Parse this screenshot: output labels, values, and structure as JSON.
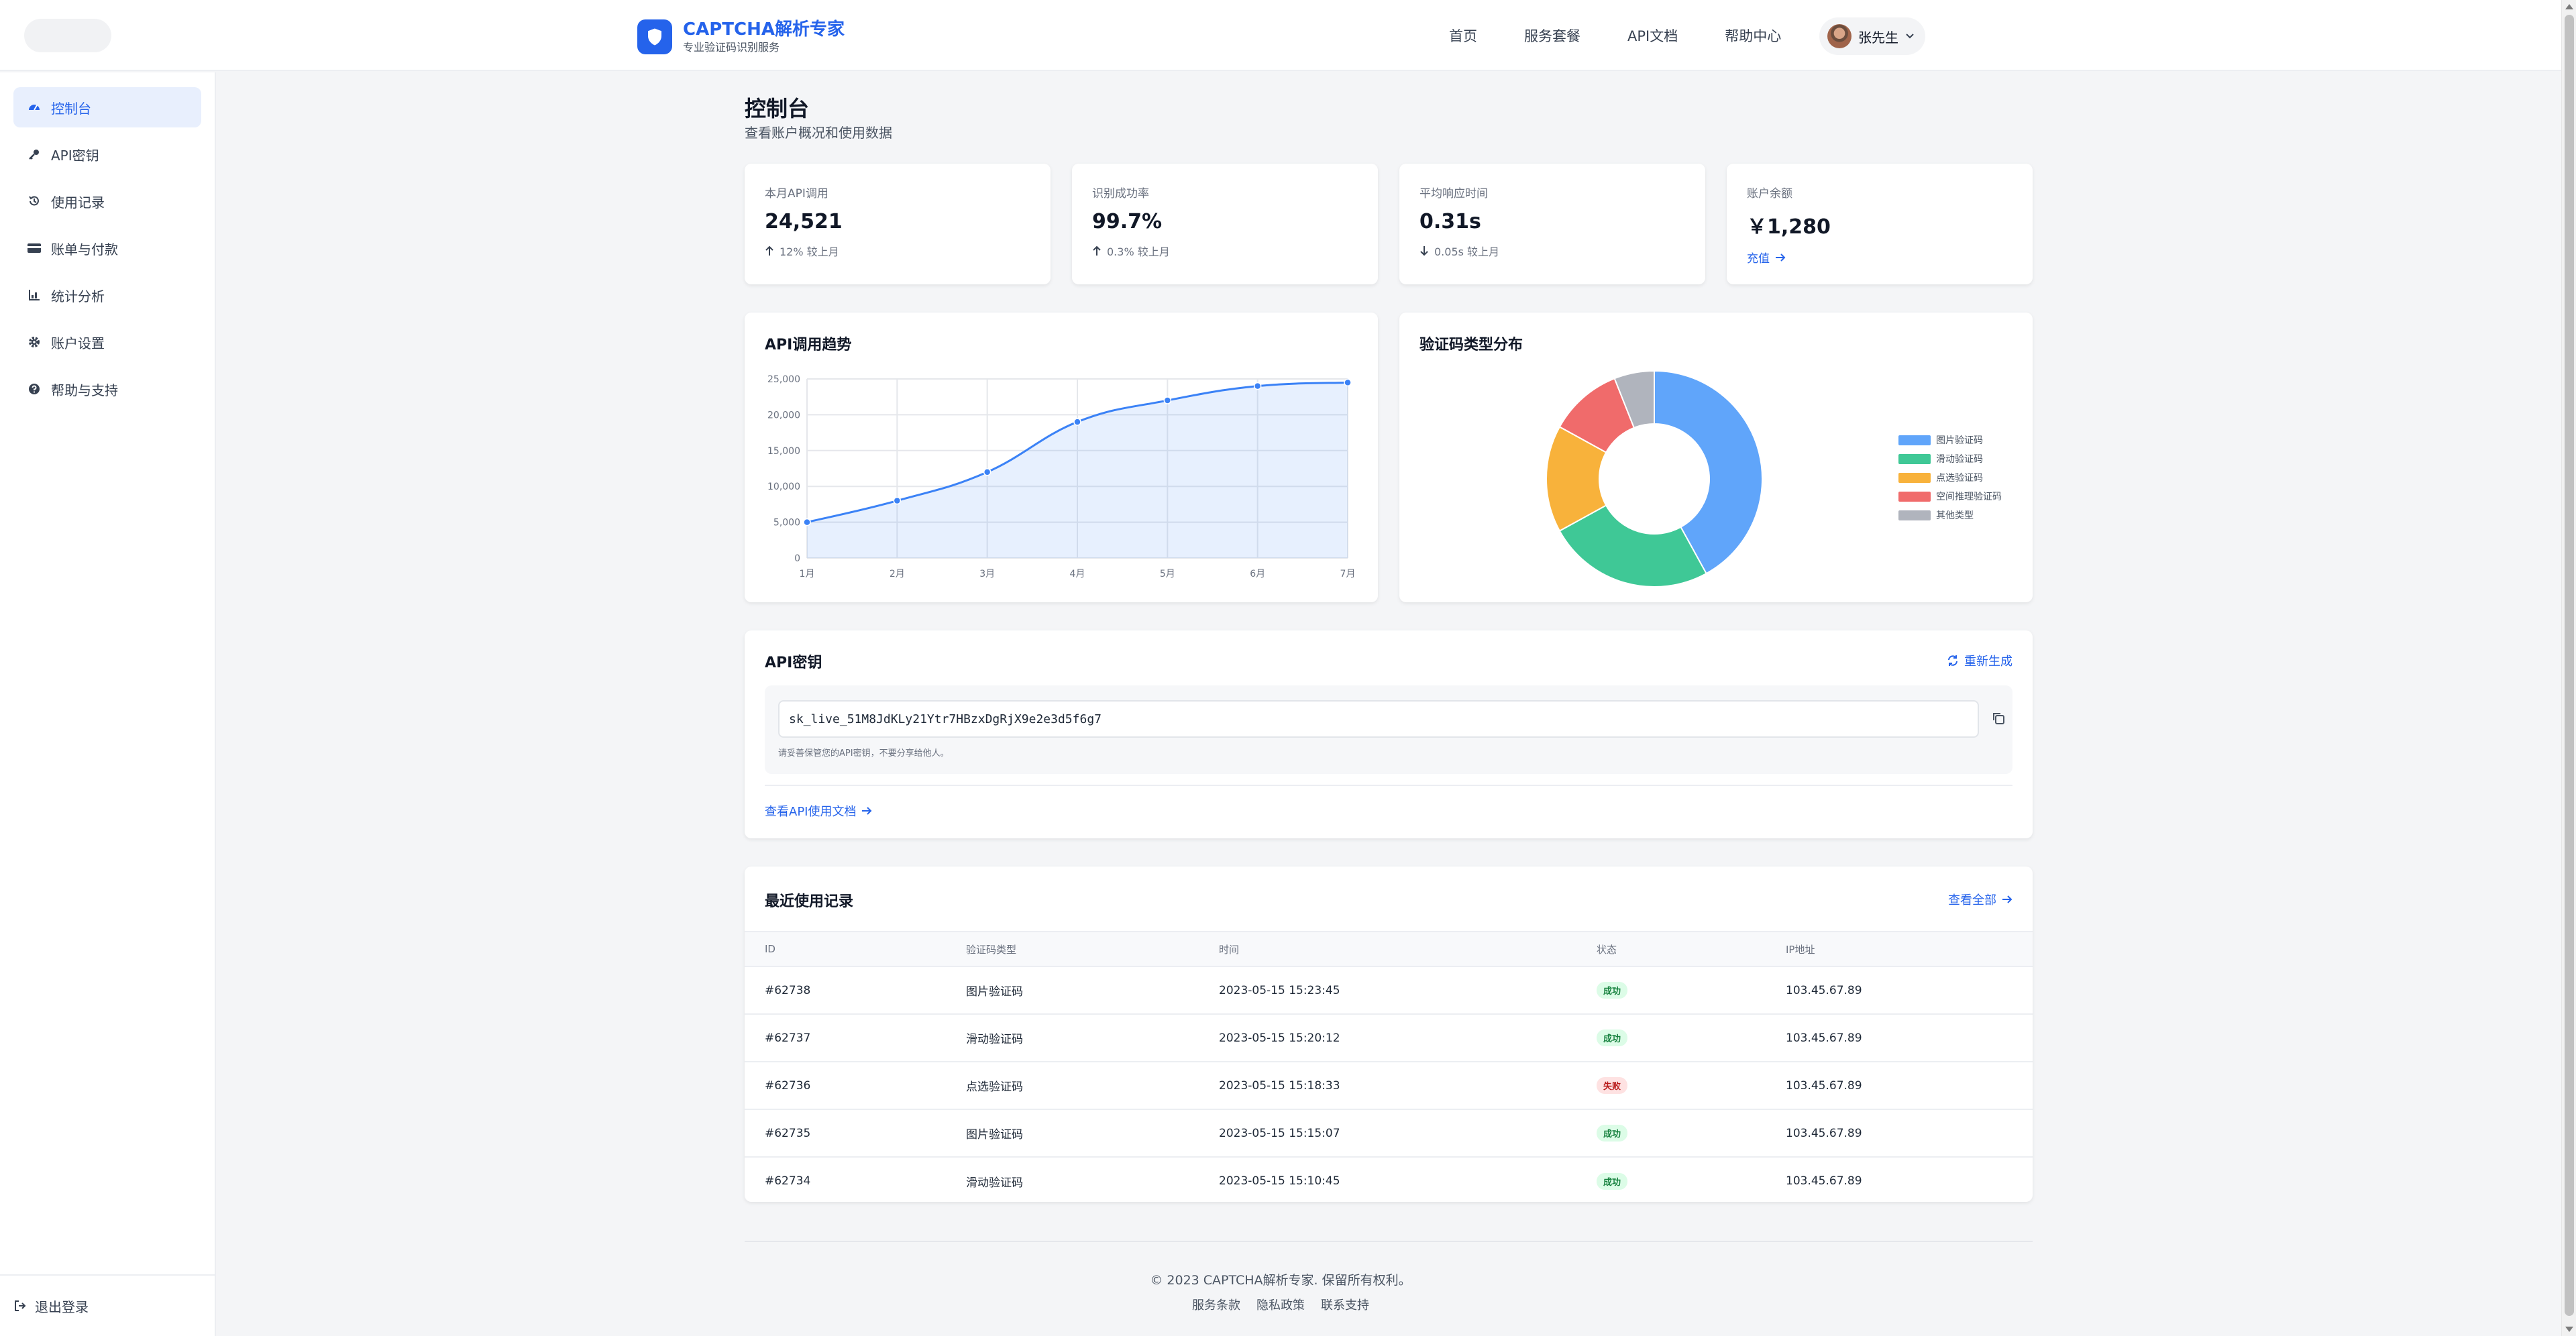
{
  "brand": {
    "title": "CAPTCHA解析专家",
    "subtitle": "专业验证码识别服务"
  },
  "nav": {
    "items": [
      "首页",
      "服务套餐",
      "API文档",
      "帮助中心"
    ]
  },
  "user": {
    "name": "张先生"
  },
  "sidebar": {
    "items": [
      {
        "label": "控制台",
        "icon": "dashboard-icon",
        "active": true
      },
      {
        "label": "API密钥",
        "icon": "key-icon"
      },
      {
        "label": "使用记录",
        "icon": "history-icon"
      },
      {
        "label": "账单与付款",
        "icon": "credit-card-icon"
      },
      {
        "label": "统计分析",
        "icon": "chart-icon"
      },
      {
        "label": "账户设置",
        "icon": "gear-icon"
      },
      {
        "label": "帮助与支持",
        "icon": "question-icon"
      }
    ],
    "logout": "退出登录"
  },
  "page": {
    "title": "控制台",
    "subtitle": "查看账户概况和使用数据"
  },
  "stats": [
    {
      "label": "本月API调用",
      "value": "24,521",
      "change": "12% 较上月",
      "direction": "up"
    },
    {
      "label": "识别成功率",
      "value": "99.7%",
      "change": "0.3% 较上月",
      "direction": "up"
    },
    {
      "label": "平均响应时间",
      "value": "0.31s",
      "change": "0.05s 较上月",
      "direction": "down"
    },
    {
      "label": "账户余额",
      "value": "￥1,280",
      "link": "充值"
    }
  ],
  "trend": {
    "title": "API调用趋势"
  },
  "distribution": {
    "title": "验证码类型分布"
  },
  "chart_data": [
    {
      "type": "line",
      "title": "API调用趋势",
      "categories": [
        "1月",
        "2月",
        "3月",
        "4月",
        "5月",
        "6月",
        "7月"
      ],
      "series": [
        {
          "values": [
            5000,
            8000,
            12000,
            19000,
            22000,
            24000,
            24500
          ]
        }
      ],
      "ylim": [
        0,
        25000
      ],
      "yticks": [
        "0",
        "5,000",
        "10,000",
        "15,000",
        "20,000",
        "25,000"
      ],
      "fill": true,
      "grid": true,
      "color": "#3b82f6"
    },
    {
      "type": "pie",
      "title": "验证码类型分布",
      "donut": true,
      "labels": [
        "图片验证码",
        "滑动验证码",
        "点选验证码",
        "空间推理验证码",
        "其他类型"
      ],
      "values": [
        42,
        25,
        16,
        11,
        6
      ],
      "colors": [
        "#60a5fa",
        "#3fc896",
        "#f8b23b",
        "#f06b6b",
        "#b0b4bd"
      ],
      "legend": "right"
    }
  ],
  "api_key": {
    "title": "API密钥",
    "regenerate": "重新生成",
    "value": "sk_live_51M8JdKLy21Ytr7HBzxDgRjX9e2e3d5f6g7",
    "hint": "请妥善保管您的API密钥，不要分享给他人。",
    "docs_link": "查看API使用文档"
  },
  "records": {
    "title": "最近使用记录",
    "view_all": "查看全部",
    "columns": [
      "ID",
      "验证码类型",
      "时间",
      "状态",
      "IP地址"
    ],
    "rows": [
      {
        "id": "#62738",
        "type": "图片验证码",
        "time": "2023-05-15 15:23:45",
        "status": "成功",
        "ok": true,
        "ip": "103.45.67.89"
      },
      {
        "id": "#62737",
        "type": "滑动验证码",
        "time": "2023-05-15 15:20:12",
        "status": "成功",
        "ok": true,
        "ip": "103.45.67.89"
      },
      {
        "id": "#62736",
        "type": "点选验证码",
        "time": "2023-05-15 15:18:33",
        "status": "失败",
        "ok": false,
        "ip": "103.45.67.89"
      },
      {
        "id": "#62735",
        "type": "图片验证码",
        "time": "2023-05-15 15:15:07",
        "status": "成功",
        "ok": true,
        "ip": "103.45.67.89"
      },
      {
        "id": "#62734",
        "type": "滑动验证码",
        "time": "2023-05-15 15:10:45",
        "status": "成功",
        "ok": true,
        "ip": "103.45.67.89"
      }
    ]
  },
  "footer": {
    "copyright": "© 2023 CAPTCHA解析专家. 保留所有权利。",
    "links": [
      "服务条款",
      "隐私政策",
      "联系支持"
    ]
  }
}
